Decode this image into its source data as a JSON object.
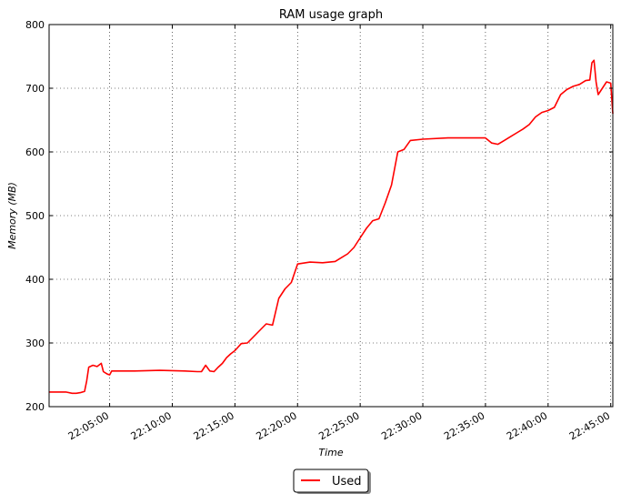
{
  "chart_data": {
    "type": "line",
    "title": "RAM usage graph",
    "xlabel": "Time",
    "ylabel": "Memory (MB)",
    "x_tick_labels": [
      "22:05:00",
      "22:10:00",
      "22:15:00",
      "22:20:00",
      "22:25:00",
      "22:30:00",
      "22:35:00",
      "22:40:00",
      "22:45:00"
    ],
    "y_tick_labels": [
      "200",
      "300",
      "400",
      "500",
      "600",
      "700",
      "800"
    ],
    "xlim": [
      "22:00:10",
      "22:45:10"
    ],
    "ylim": [
      200,
      800
    ],
    "grid": true,
    "legend_position": "bottom-center",
    "series": [
      {
        "name": "Used",
        "color": "#ff0000",
        "x": [
          "22:00:10",
          "22:01:30",
          "22:02:00",
          "22:02:20",
          "22:02:40",
          "22:03:00",
          "22:03:10",
          "22:03:20",
          "22:03:40",
          "22:04:00",
          "22:04:20",
          "22:04:30",
          "22:04:40",
          "22:04:50",
          "22:05:00",
          "22:05:10",
          "22:07:00",
          "22:09:00",
          "22:11:00",
          "22:12:00",
          "22:12:20",
          "22:12:40",
          "22:13:00",
          "22:13:20",
          "22:13:40",
          "22:14:00",
          "22:14:20",
          "22:14:40",
          "22:15:00",
          "22:15:30",
          "22:16:00",
          "22:16:30",
          "22:17:00",
          "22:17:30",
          "22:18:00",
          "22:18:30",
          "22:19:00",
          "22:19:30",
          "22:20:00",
          "22:21:00",
          "22:22:00",
          "22:23:00",
          "22:23:30",
          "22:24:00",
          "22:24:30",
          "22:25:00",
          "22:25:30",
          "22:26:00",
          "22:26:30",
          "22:27:00",
          "22:27:30",
          "22:28:00",
          "22:28:30",
          "22:29:00",
          "22:30:00",
          "22:32:00",
          "22:34:00",
          "22:35:00",
          "22:35:30",
          "22:36:00",
          "22:36:30",
          "22:37:00",
          "22:37:30",
          "22:38:00",
          "22:38:30",
          "22:39:00",
          "22:39:30",
          "22:40:00",
          "22:40:30",
          "22:41:00",
          "22:41:30",
          "22:42:00",
          "22:42:30",
          "22:43:00",
          "22:43:20",
          "22:43:30",
          "22:43:40",
          "22:43:50",
          "22:44:00",
          "22:44:20",
          "22:44:40",
          "22:45:00",
          "22:45:10"
        ],
        "values": [
          223,
          223,
          221,
          221,
          222,
          224,
          240,
          262,
          265,
          263,
          268,
          255,
          253,
          251,
          250,
          256,
          256,
          257,
          256,
          255,
          255,
          265,
          256,
          255,
          262,
          268,
          277,
          283,
          288,
          299,
          300,
          310,
          320,
          330,
          328,
          370,
          385,
          395,
          424,
          427,
          426,
          428,
          434,
          440,
          450,
          465,
          480,
          492,
          495,
          520,
          548,
          600,
          604,
          618,
          620,
          622,
          622,
          622,
          614,
          612,
          618,
          624,
          630,
          636,
          643,
          655,
          662,
          665,
          670,
          690,
          698,
          703,
          706,
          712,
          713,
          740,
          744,
          710,
          690,
          700,
          710,
          708,
          660
        ]
      }
    ]
  }
}
